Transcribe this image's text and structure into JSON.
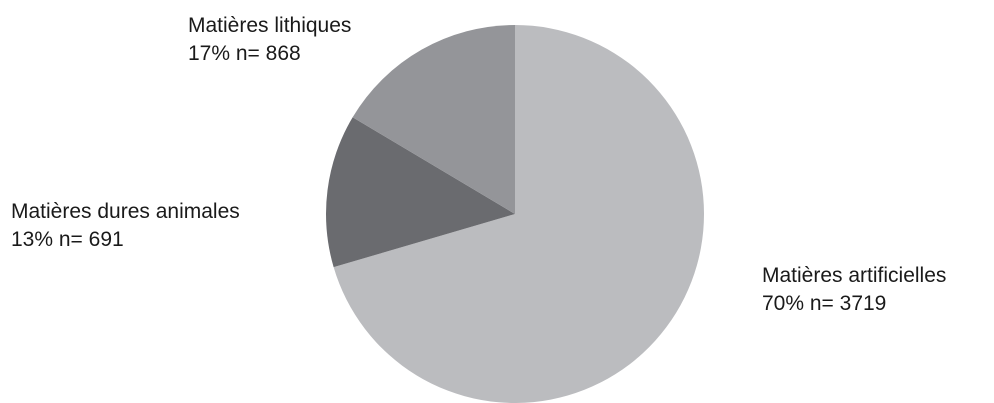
{
  "chart_data": {
    "type": "pie",
    "title": "",
    "slices": [
      {
        "label": "Matières artificielles",
        "value": 3719,
        "percent_label": "70% n= 3719",
        "color": "#bbbcbf"
      },
      {
        "label": "Matières dures animales",
        "value": 691,
        "percent_label": "13% n= 691",
        "color": "#6a6b6f"
      },
      {
        "label": "Matières lithiques",
        "value": 868,
        "percent_label": "17% n= 868",
        "color": "#949599"
      }
    ],
    "start": "12 o'clock",
    "direction": "clockwise",
    "legend": "none"
  }
}
